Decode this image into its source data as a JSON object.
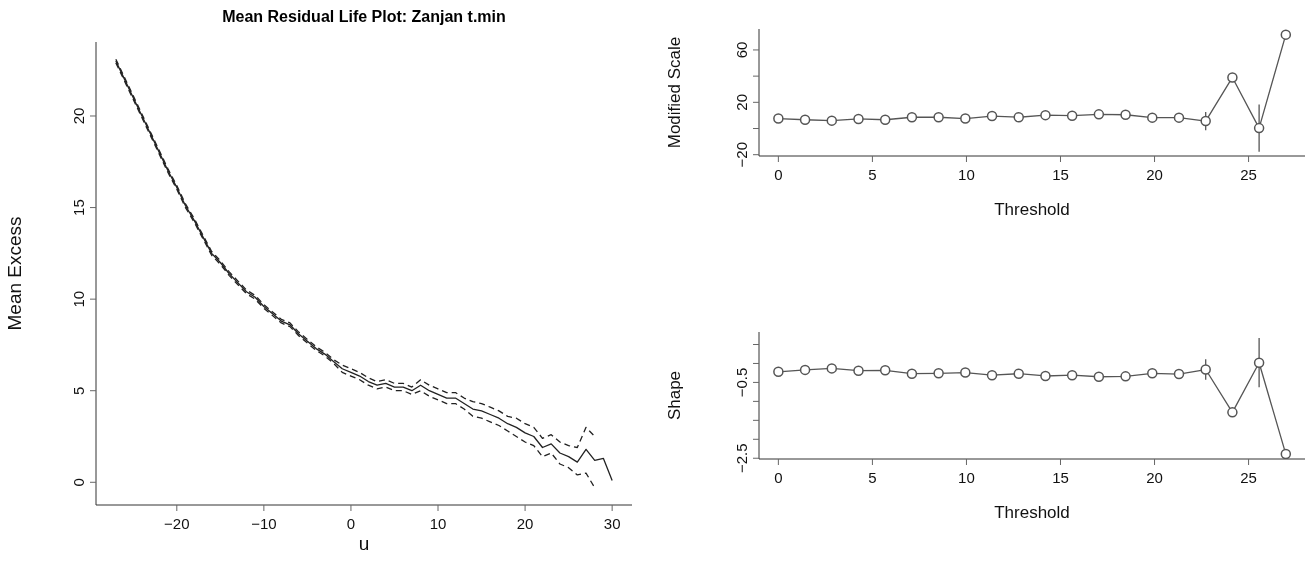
{
  "chart_data": [
    {
      "type": "line",
      "title": "Mean Residual Life Plot: Zanjan t.min",
      "xlabel": "u",
      "ylabel": "Mean Excess",
      "xlim": [
        -29.28,
        32.28
      ],
      "ylim": [
        -1.24,
        24.04
      ],
      "xticks": [
        -20,
        -10,
        0,
        10,
        20,
        30
      ],
      "yticks": [
        0,
        5,
        10,
        15,
        20
      ],
      "grid": false,
      "legend": false,
      "series": [
        {
          "color": "#222222",
          "line_style": "solid",
          "x": [
            -27,
            -26,
            -25,
            -24,
            -23,
            -22,
            -21,
            -20,
            -19,
            -18,
            -17,
            -16,
            -15,
            -14,
            -13,
            -12,
            -11,
            -10,
            -9,
            -8,
            -7,
            -6,
            -5,
            -4,
            -3,
            -2,
            -1,
            0,
            1,
            2,
            3,
            4,
            5,
            6,
            7,
            8,
            9,
            10,
            11,
            12,
            13,
            14,
            15,
            16,
            17,
            18,
            19,
            20,
            21,
            22,
            23,
            24,
            25,
            26,
            27,
            28,
            29,
            30
          ],
          "values": [
            23.0,
            22.0,
            21.0,
            20.0,
            19.0,
            18.0,
            17.0,
            16.1,
            15.1,
            14.3,
            13.4,
            12.5,
            12.0,
            11.4,
            10.9,
            10.4,
            10.1,
            9.6,
            9.2,
            8.8,
            8.6,
            8.1,
            7.7,
            7.3,
            7.0,
            6.6,
            6.2,
            6.0,
            5.8,
            5.5,
            5.3,
            5.4,
            5.2,
            5.2,
            5.0,
            5.3,
            5.0,
            4.8,
            4.6,
            4.6,
            4.3,
            4.0,
            3.9,
            3.7,
            3.5,
            3.2,
            3.0,
            2.7,
            2.5,
            1.9,
            2.1,
            1.6,
            1.4,
            1.1,
            1.8,
            1.2,
            1.3,
            0.1
          ]
        },
        {
          "color": "#222222",
          "line_style": "dashed",
          "x": [
            -27,
            -26,
            -25,
            -24,
            -23,
            -22,
            -21,
            -20,
            -19,
            -18,
            -17,
            -16,
            -15,
            -14,
            -13,
            -12,
            -11,
            -10,
            -9,
            -8,
            -7,
            -6,
            -5,
            -4,
            -3,
            -2,
            -1,
            0,
            1,
            2,
            3,
            4,
            5,
            6,
            7,
            8,
            9,
            10,
            11,
            12,
            13,
            14,
            15,
            16,
            17,
            18,
            19,
            20,
            21,
            22,
            23,
            24,
            25,
            26,
            27,
            28
          ],
          "values": [
            23.1,
            22.1,
            21.1,
            20.1,
            19.1,
            18.1,
            17.1,
            16.2,
            15.2,
            14.4,
            13.5,
            12.6,
            12.1,
            11.5,
            11.0,
            10.5,
            10.2,
            9.7,
            9.3,
            8.9,
            8.7,
            8.2,
            7.8,
            7.4,
            7.1,
            6.7,
            6.4,
            6.2,
            6.0,
            5.7,
            5.5,
            5.6,
            5.4,
            5.4,
            5.2,
            5.6,
            5.3,
            5.1,
            4.9,
            4.9,
            4.6,
            4.4,
            4.3,
            4.1,
            3.9,
            3.6,
            3.5,
            3.2,
            3.0,
            2.4,
            2.6,
            2.2,
            2.0,
            1.9,
            3.0,
            2.5
          ]
        },
        {
          "color": "#222222",
          "line_style": "dashed",
          "x": [
            -27,
            -26,
            -25,
            -24,
            -23,
            -22,
            -21,
            -20,
            -19,
            -18,
            -17,
            -16,
            -15,
            -14,
            -13,
            -12,
            -11,
            -10,
            -9,
            -8,
            -7,
            -6,
            -5,
            -4,
            -3,
            -2,
            -1,
            0,
            1,
            2,
            3,
            4,
            5,
            6,
            7,
            8,
            9,
            10,
            11,
            12,
            13,
            14,
            15,
            16,
            17,
            18,
            19,
            20,
            21,
            22,
            23,
            24,
            25,
            26,
            27,
            28
          ],
          "values": [
            22.9,
            21.9,
            20.9,
            19.9,
            18.9,
            17.9,
            16.9,
            16.0,
            15.0,
            14.2,
            13.3,
            12.4,
            11.9,
            11.3,
            10.8,
            10.3,
            10.0,
            9.5,
            9.1,
            8.7,
            8.5,
            8.0,
            7.6,
            7.2,
            6.9,
            6.5,
            6.0,
            5.8,
            5.6,
            5.3,
            5.1,
            5.2,
            5.0,
            5.0,
            4.8,
            5.0,
            4.7,
            4.5,
            4.3,
            4.3,
            4.0,
            3.6,
            3.5,
            3.3,
            3.1,
            2.8,
            2.5,
            2.2,
            2.0,
            1.4,
            1.6,
            1.0,
            0.8,
            0.4,
            0.5,
            -0.3
          ]
        }
      ]
    },
    {
      "type": "line",
      "xlabel": "Threshold",
      "ylabel": "Modified Scale",
      "xlim": [
        -1.03,
        28.0
      ],
      "ylim": [
        -21,
        76
      ],
      "xticks": [
        0,
        5,
        10,
        15,
        20,
        25
      ],
      "yticks": [
        -20,
        {
          "value": 0,
          "label": null
        },
        20,
        {
          "value": 40,
          "label": null
        },
        60
      ],
      "grid": false,
      "legend": false,
      "marker": "circle",
      "line_style": "solid",
      "color": "#555555",
      "x": [
        0,
        1.42,
        2.84,
        4.26,
        5.68,
        7.1,
        8.52,
        9.94,
        11.36,
        12.78,
        14.2,
        15.62,
        17.04,
        18.46,
        19.88,
        21.3,
        22.72,
        24.14,
        25.56,
        26.98
      ],
      "values": [
        7.6,
        6.7,
        6.0,
        7.3,
        6.7,
        8.6,
        8.6,
        7.6,
        9.5,
        8.6,
        10.2,
        9.8,
        10.8,
        10.5,
        8.3,
        8.3,
        5.7,
        39,
        0.3,
        71.7
      ],
      "errors": [
        null,
        null,
        null,
        null,
        null,
        null,
        null,
        null,
        null,
        null,
        null,
        null,
        2.5,
        2.5,
        2.5,
        2.5,
        7,
        null,
        18,
        null
      ]
    },
    {
      "type": "line",
      "xlabel": "Threshold",
      "ylabel": "Shape",
      "xlim": [
        -1.03,
        28.0
      ],
      "ylim": [
        -2.52,
        0.83
      ],
      "xticks": [
        0,
        5,
        10,
        15,
        20,
        25
      ],
      "yticks": [
        {
          "value": 0.5,
          "label": null
        },
        {
          "value": 0,
          "label": null
        },
        -0.5,
        {
          "value": -1,
          "label": null
        },
        {
          "value": -1.5,
          "label": null
        },
        {
          "value": -2,
          "label": null
        },
        -2.5
      ],
      "grid": false,
      "legend": false,
      "marker": "circle",
      "line_style": "solid",
      "color": "#555555",
      "x": [
        0,
        1.42,
        2.84,
        4.26,
        5.68,
        7.1,
        8.52,
        9.94,
        11.36,
        12.78,
        14.2,
        15.62,
        17.04,
        18.46,
        19.88,
        21.3,
        22.72,
        24.14,
        25.56,
        26.98
      ],
      "values": [
        -0.22,
        -0.17,
        -0.13,
        -0.19,
        -0.18,
        -0.27,
        -0.26,
        -0.24,
        -0.31,
        -0.27,
        -0.33,
        -0.31,
        -0.35,
        -0.34,
        -0.26,
        -0.28,
        -0.16,
        -1.29,
        0.02,
        -2.39
      ],
      "errors": [
        null,
        null,
        null,
        null,
        null,
        null,
        null,
        null,
        null,
        null,
        null,
        null,
        0.05,
        0.05,
        0.05,
        0.05,
        0.27,
        null,
        0.65,
        null
      ]
    }
  ]
}
